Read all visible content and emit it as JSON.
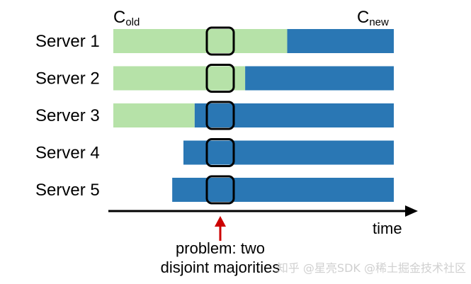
{
  "diagram": {
    "old_config_label": {
      "main": "C",
      "sub": "old"
    },
    "new_config_label": {
      "main": "C",
      "sub": "new"
    },
    "servers": [
      {
        "label": "Server 1",
        "old_config_until": 0.62,
        "starts_at": 0.0
      },
      {
        "label": "Server 2",
        "old_config_until": 0.47,
        "starts_at": 0.0
      },
      {
        "label": "Server 3",
        "old_config_until": 0.29,
        "starts_at": 0.0
      },
      {
        "label": "Server 4",
        "old_config_until": null,
        "starts_at": 0.25
      },
      {
        "label": "Server 5",
        "old_config_until": null,
        "starts_at": 0.21
      }
    ],
    "time_axis_label": "time",
    "problem_note_line1": "problem: two",
    "problem_note_line2": "disjoint majorities",
    "watermark": "知乎 @星亮SDK  @稀土掘金技术社区",
    "colors": {
      "old_config": "#b6e2a8",
      "new_config": "#2a77b4",
      "highlight_outline": "#000000",
      "arrow": "#cc0000",
      "axis": "#000000"
    }
  }
}
